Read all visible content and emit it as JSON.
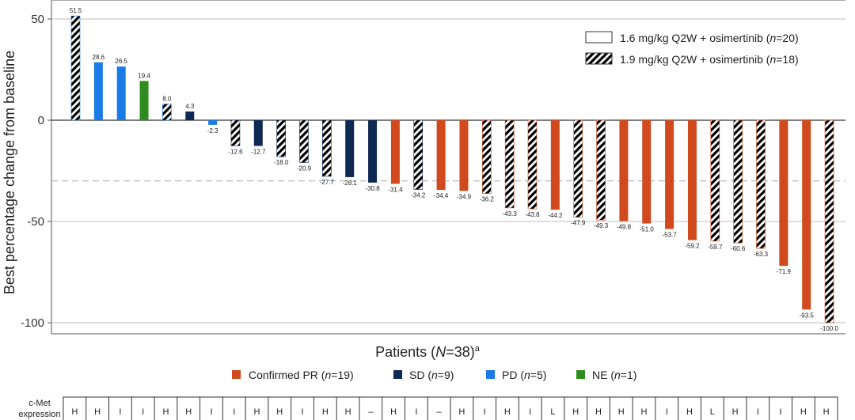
{
  "chart_data": {
    "type": "bar",
    "ylabel": "Best percentage change from baseline",
    "xlabel_prefix": "Patients (",
    "xlabel_n": "N",
    "xlabel_suffix": "=38)",
    "xlabel_sup": "a",
    "y_ticks": [
      "50",
      "0",
      "-50",
      "-100"
    ],
    "ylim": [
      -105,
      55
    ],
    "reference_line": -30,
    "dose_legend": [
      {
        "text_pre": "1.6 mg/kg Q2W + osimertinib (",
        "n": "n",
        "text_post": "=20)",
        "pattern": "solid"
      },
      {
        "text_pre": "1.9 mg/kg Q2W + osimertinib (",
        "n": "n",
        "text_post": "=18)",
        "pattern": "hatched"
      }
    ],
    "response_legend": [
      {
        "key": "PR",
        "text_pre": "Confirmed PR (",
        "n": "n",
        "text_post": "=19)",
        "color": "#d04a1e"
      },
      {
        "key": "SD",
        "text_pre": "SD (",
        "n": "n",
        "text_post": "=9)",
        "color": "#0f2a52"
      },
      {
        "key": "PD",
        "text_pre": "PD (",
        "n": "n",
        "text_post": "=5)",
        "color": "#1a7be6"
      },
      {
        "key": "NE",
        "text_pre": "NE (",
        "n": "n",
        "text_post": "=1)",
        "color": "#2e8b1e"
      }
    ],
    "labels": [
      "51.5",
      "28.6",
      "26.5",
      "19.4",
      "8.0",
      "4.3",
      "-2.3",
      "-12.6",
      "-12.7",
      "-18.0",
      "-20.9",
      "-27.7",
      "-28.1",
      "-30.8",
      "-31.4",
      "-34.2",
      "-34.4",
      "-34.9",
      "-36.2",
      "-43.3",
      "-43.8",
      "-44.2",
      "-47.9",
      "-49.3",
      "-49.8",
      "-51.0",
      "-53.7",
      "-59.2",
      "-59.7",
      "-60.6",
      "-63.3",
      "-71.9",
      "-93.5",
      "-100.0"
    ],
    "values": [
      51.5,
      28.6,
      26.5,
      19.4,
      8.0,
      4.3,
      -2.3,
      -12.6,
      -12.7,
      -18.0,
      -20.9,
      -27.7,
      -28.1,
      -30.8,
      -31.4,
      -34.2,
      -34.4,
      -34.9,
      -36.2,
      -43.3,
      -43.8,
      -44.2,
      -47.9,
      -49.3,
      -49.8,
      -51.0,
      -53.7,
      -59.2,
      -59.7,
      -60.6,
      -63.3,
      -71.9,
      -93.5,
      -100.0
    ],
    "response": [
      "PD",
      "PD",
      "PD",
      "NE",
      "PD",
      "SD",
      "PD",
      "SD",
      "SD",
      "SD",
      "SD",
      "SD",
      "SD",
      "SD",
      "PR",
      "SD",
      "PR",
      "PR",
      "PR",
      "PR",
      "PR",
      "PR",
      "PR",
      "PR",
      "PR",
      "PR",
      "PR",
      "PR",
      "PR",
      "PR",
      "PR",
      "PR",
      "PR",
      "PR"
    ],
    "hatched": [
      true,
      false,
      false,
      false,
      true,
      false,
      false,
      true,
      false,
      true,
      true,
      true,
      false,
      false,
      false,
      true,
      false,
      false,
      true,
      true,
      true,
      false,
      true,
      true,
      false,
      false,
      false,
      false,
      true,
      true,
      true,
      false,
      false,
      true
    ],
    "cmet_title": [
      "c-Met",
      "expression"
    ],
    "cmet": [
      "H",
      "H",
      "I",
      "I",
      "H",
      "H",
      "I",
      "I",
      "H",
      "H",
      "I",
      "H",
      "H",
      "–",
      "H",
      "I",
      "–",
      "H",
      "I",
      "H",
      "I",
      "L",
      "H",
      "H",
      "H",
      "H",
      "I",
      "H",
      "L",
      "H",
      "I",
      "I",
      "H",
      "H"
    ]
  }
}
